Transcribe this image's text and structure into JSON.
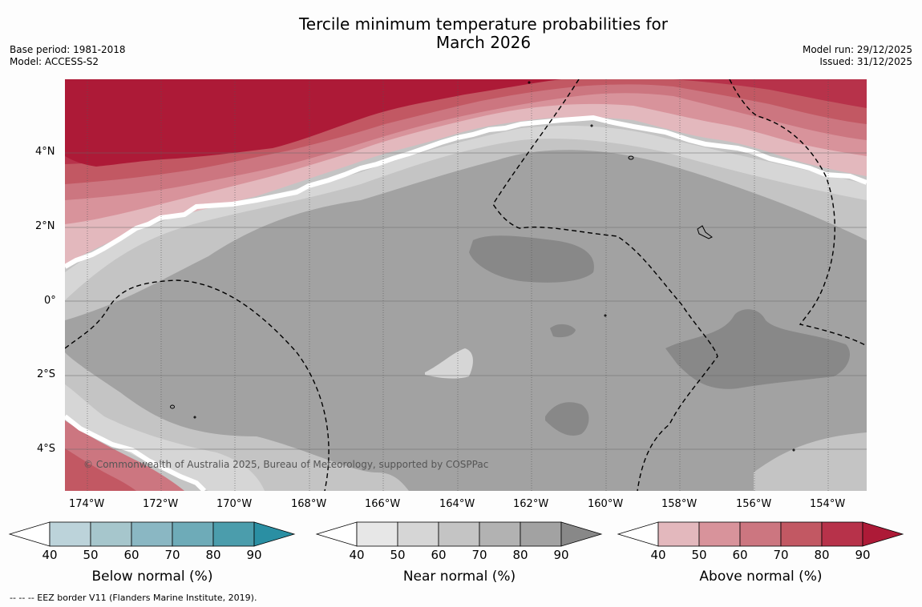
{
  "title_line1": "Tercile minimum temperature probabilities for",
  "title_line2": "March 2026",
  "base_period": "Base period: 1981-2018",
  "model": "Model: ACCESS-S2",
  "model_run": "Model run: 29/12/2025",
  "issued": "Issued: 31/12/2025",
  "copyright": "© Commonwealth of Australia 2025, Bureau of Meteorology, supported by COSPPac",
  "lat_labels": [
    "4°N",
    "2°N",
    "0°",
    "2°S",
    "4°S"
  ],
  "lon_labels": [
    "174°W",
    "172°W",
    "170°W",
    "168°W",
    "166°W",
    "164°W",
    "162°W",
    "160°W",
    "158°W",
    "156°W",
    "154°W"
  ],
  "colorbars": [
    {
      "title": "Below normal (%)",
      "ticks": [
        "40",
        "50",
        "60",
        "70",
        "80",
        "90"
      ],
      "colors": [
        "#bcd3da",
        "#a6c6cc",
        "#8ab7c3",
        "#6eabb8",
        "#4b9dac",
        "#2a8fa3"
      ]
    },
    {
      "title": "Near normal (%)",
      "ticks": [
        "40",
        "50",
        "60",
        "70",
        "80",
        "90"
      ],
      "colors": [
        "#e7e7e7",
        "#d6d6d6",
        "#c4c4c4",
        "#b2b2b2",
        "#a2a2a2",
        "#888888"
      ]
    },
    {
      "title": "Above normal (%)",
      "ticks": [
        "40",
        "50",
        "60",
        "70",
        "80",
        "90"
      ],
      "colors": [
        "#e3b8bd",
        "#d8939b",
        "#cc7680",
        "#c25863",
        "#b7324a",
        "#ad1a37"
      ]
    }
  ],
  "footnote": "--  --  -- EEZ border V11 (Flanders Marine Institute, 2019)."
}
